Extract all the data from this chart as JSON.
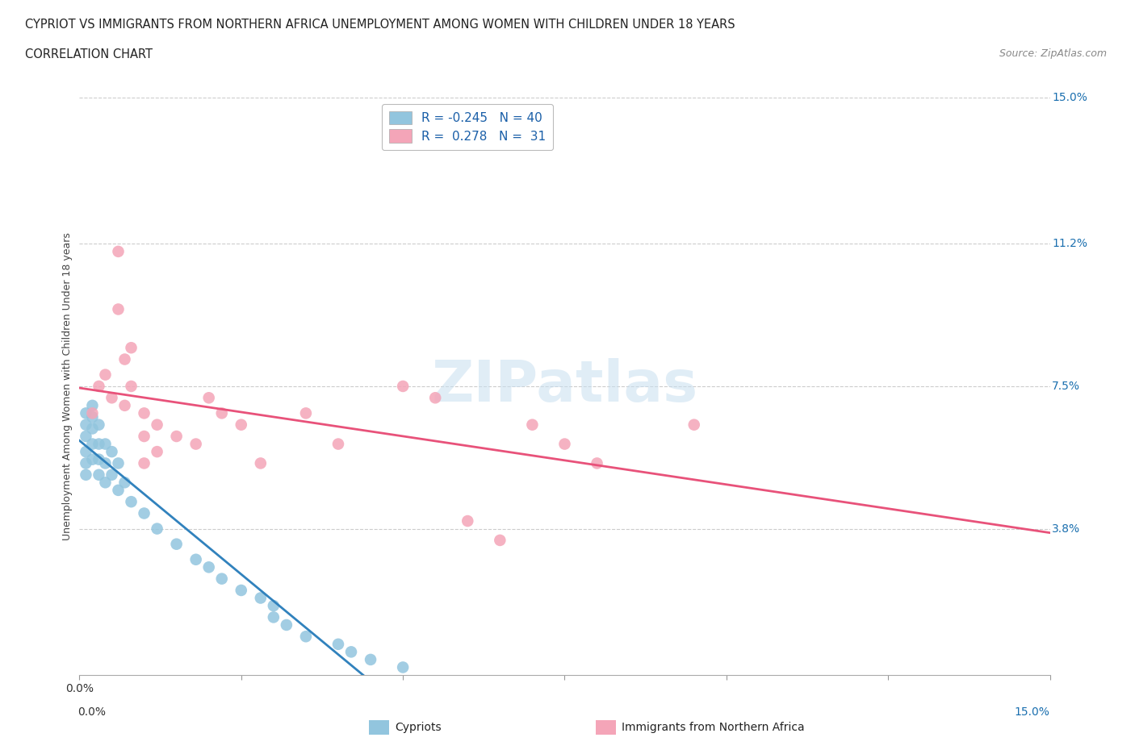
{
  "title_line1": "CYPRIOT VS IMMIGRANTS FROM NORTHERN AFRICA UNEMPLOYMENT AMONG WOMEN WITH CHILDREN UNDER 18 YEARS",
  "title_line2": "CORRELATION CHART",
  "source": "Source: ZipAtlas.com",
  "ylabel": "Unemployment Among Women with Children Under 18 years",
  "xlim": [
    0.0,
    0.15
  ],
  "ylim": [
    0.0,
    0.15
  ],
  "ytick_values": [
    0.0,
    0.038,
    0.075,
    0.112,
    0.15
  ],
  "ytick_labels": [
    "",
    "3.8%",
    "7.5%",
    "11.2%",
    "15.0%"
  ],
  "hline_values": [
    0.038,
    0.075,
    0.112,
    0.15
  ],
  "legend_r_blue": "-0.245",
  "legend_n_blue": "40",
  "legend_r_pink": "0.278",
  "legend_n_pink": "31",
  "blue_color": "#92c5de",
  "pink_color": "#f4a5b8",
  "blue_line_color": "#3182bd",
  "pink_line_color": "#e8527a",
  "watermark": "ZIPatlas",
  "cypriot_x": [
    0.001,
    0.001,
    0.001,
    0.001,
    0.001,
    0.001,
    0.002,
    0.002,
    0.002,
    0.002,
    0.002,
    0.003,
    0.003,
    0.003,
    0.003,
    0.004,
    0.004,
    0.004,
    0.005,
    0.005,
    0.006,
    0.006,
    0.007,
    0.008,
    0.01,
    0.012,
    0.015,
    0.018,
    0.02,
    0.022,
    0.025,
    0.028,
    0.03,
    0.03,
    0.032,
    0.035,
    0.04,
    0.042,
    0.045,
    0.05
  ],
  "cypriot_y": [
    0.068,
    0.065,
    0.062,
    0.058,
    0.055,
    0.052,
    0.07,
    0.067,
    0.064,
    0.06,
    0.056,
    0.065,
    0.06,
    0.056,
    0.052,
    0.06,
    0.055,
    0.05,
    0.058,
    0.052,
    0.055,
    0.048,
    0.05,
    0.045,
    0.042,
    0.038,
    0.034,
    0.03,
    0.028,
    0.025,
    0.022,
    0.02,
    0.018,
    0.015,
    0.013,
    0.01,
    0.008,
    0.006,
    0.004,
    0.002
  ],
  "nafr_x": [
    0.002,
    0.003,
    0.004,
    0.005,
    0.006,
    0.006,
    0.007,
    0.007,
    0.008,
    0.008,
    0.01,
    0.01,
    0.01,
    0.012,
    0.012,
    0.015,
    0.018,
    0.02,
    0.022,
    0.025,
    0.028,
    0.035,
    0.04,
    0.05,
    0.055,
    0.06,
    0.065,
    0.07,
    0.075,
    0.08,
    0.095
  ],
  "nafr_y": [
    0.068,
    0.075,
    0.078,
    0.072,
    0.11,
    0.095,
    0.082,
    0.07,
    0.085,
    0.075,
    0.068,
    0.062,
    0.055,
    0.065,
    0.058,
    0.062,
    0.06,
    0.072,
    0.068,
    0.065,
    0.055,
    0.068,
    0.06,
    0.075,
    0.072,
    0.04,
    0.035,
    0.065,
    0.06,
    0.055,
    0.065
  ]
}
